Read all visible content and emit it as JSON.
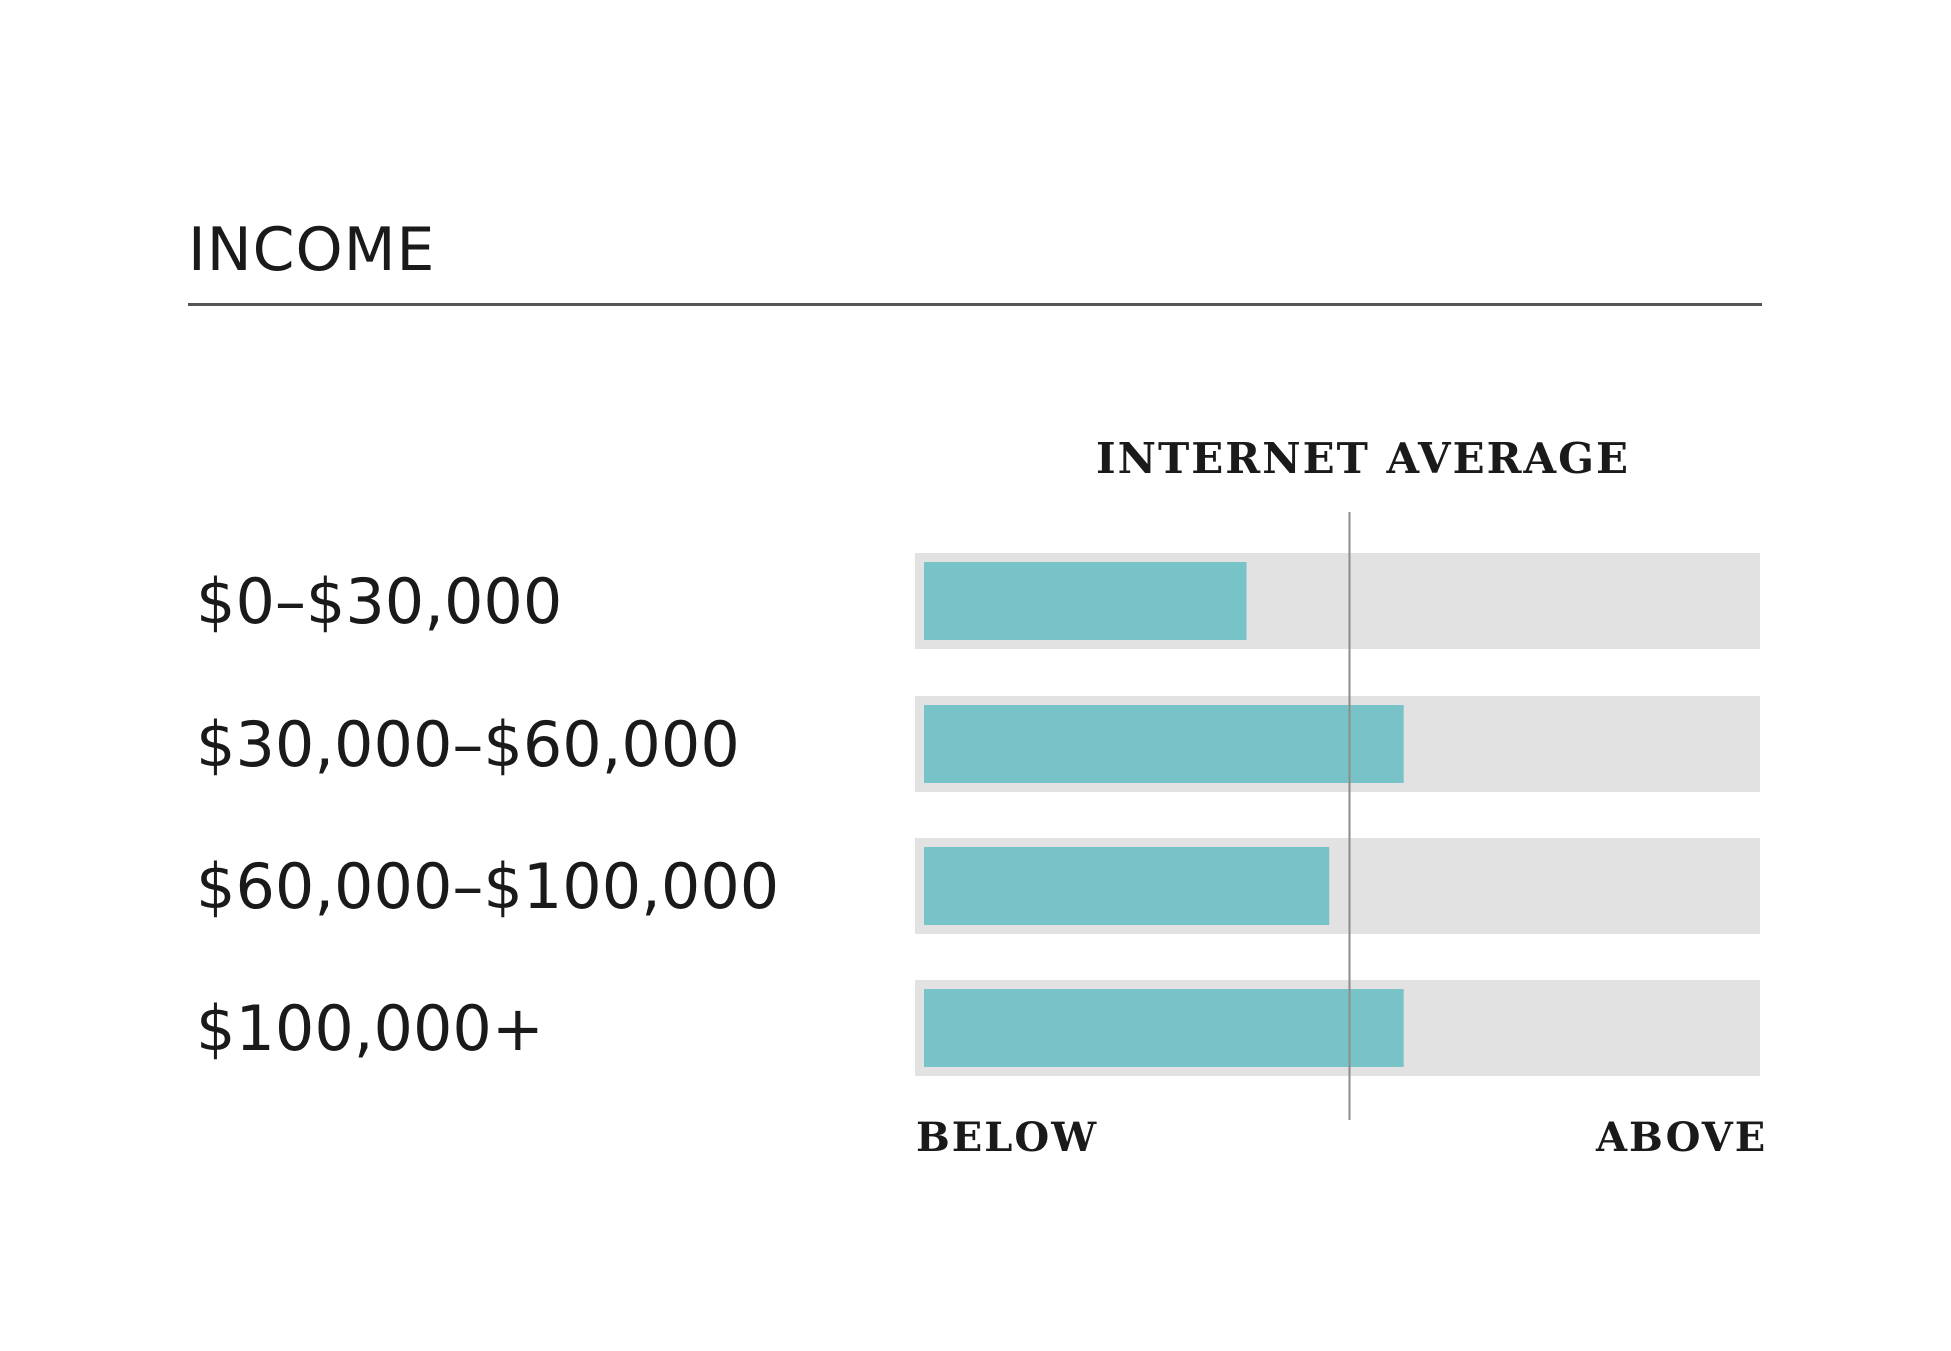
{
  "title": "INCOME",
  "chart_data": {
    "type": "bar",
    "orientation": "horizontal",
    "categories": [
      "$0–$30,000",
      "$30,000–$60,000",
      "$60,000–$100,000",
      "$100,000+"
    ],
    "values": [
      0.39,
      0.58,
      0.49,
      0.58
    ],
    "reference_line": {
      "label": "INTERNET AVERAGE",
      "value": 0.5
    },
    "axis_min_label": "BELOW",
    "axis_max_label": "ABOVE",
    "xlim": [
      0,
      1
    ],
    "grid": false,
    "colors": {
      "bar": "#78c3c8",
      "track": "#e3e2e3",
      "reference_line": "#8c8c8c"
    }
  }
}
